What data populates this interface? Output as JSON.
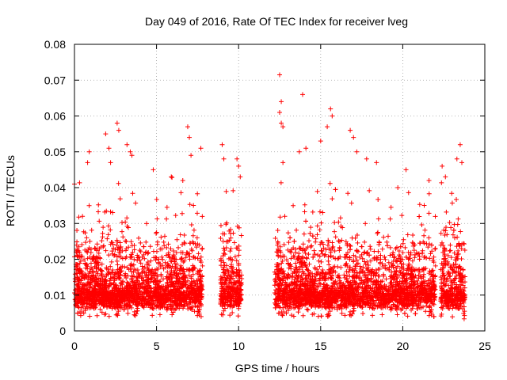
{
  "chart_data": {
    "type": "scatter",
    "title": "Day 049 of 2016, Rate Of TEC Index for receiver lveg",
    "xlabel": "GPS time / hours",
    "ylabel": "ROTI / TECUs",
    "xlim": [
      0,
      25
    ],
    "ylim": [
      0,
      0.08
    ],
    "grid": true,
    "marker": "+",
    "marker_color": "#ff0000",
    "x_ticks": [
      0,
      5,
      10,
      15,
      20,
      25
    ],
    "x_tick_labels": [
      "0",
      "5",
      "10",
      "15",
      "20",
      "25"
    ],
    "y_ticks": [
      0,
      0.01,
      0.02,
      0.03,
      0.04,
      0.05,
      0.06,
      0.07,
      0.08
    ],
    "y_tick_labels": [
      "0",
      "0.01",
      "0.02",
      "0.03",
      "0.04",
      "0.05",
      "0.06",
      "0.07",
      "0.08"
    ],
    "series": [
      {
        "name": "ROTI",
        "segments": [
          {
            "x_start": 0.0,
            "x_end": 7.8,
            "typical_min": 0.004,
            "typical_max": 0.025
          },
          {
            "x_start": 8.9,
            "x_end": 10.2,
            "typical_min": 0.004,
            "typical_max": 0.03
          },
          {
            "x_start": 12.2,
            "x_end": 22.0,
            "typical_min": 0.004,
            "typical_max": 0.025
          },
          {
            "x_start": 22.3,
            "x_end": 23.8,
            "typical_min": 0.003,
            "typical_max": 0.03
          }
        ],
        "notable_points": [
          {
            "x": 0.0,
            "y": 0.041
          },
          {
            "x": 0.8,
            "y": 0.047
          },
          {
            "x": 0.9,
            "y": 0.05
          },
          {
            "x": 1.9,
            "y": 0.055
          },
          {
            "x": 2.1,
            "y": 0.051
          },
          {
            "x": 2.2,
            "y": 0.047
          },
          {
            "x": 2.6,
            "y": 0.058
          },
          {
            "x": 2.7,
            "y": 0.056
          },
          {
            "x": 3.2,
            "y": 0.052
          },
          {
            "x": 3.4,
            "y": 0.05
          },
          {
            "x": 3.5,
            "y": 0.049
          },
          {
            "x": 4.8,
            "y": 0.045
          },
          {
            "x": 5.9,
            "y": 0.043
          },
          {
            "x": 6.6,
            "y": 0.042
          },
          {
            "x": 6.9,
            "y": 0.057
          },
          {
            "x": 7.0,
            "y": 0.054
          },
          {
            "x": 7.1,
            "y": 0.049
          },
          {
            "x": 7.7,
            "y": 0.051
          },
          {
            "x": 9.0,
            "y": 0.052
          },
          {
            "x": 9.1,
            "y": 0.048
          },
          {
            "x": 9.9,
            "y": 0.048
          },
          {
            "x": 10.0,
            "y": 0.046
          },
          {
            "x": 10.1,
            "y": 0.043
          },
          {
            "x": 12.5,
            "y": 0.0715
          },
          {
            "x": 12.6,
            "y": 0.064
          },
          {
            "x": 12.5,
            "y": 0.061
          },
          {
            "x": 12.6,
            "y": 0.058
          },
          {
            "x": 12.7,
            "y": 0.057
          },
          {
            "x": 12.7,
            "y": 0.047
          },
          {
            "x": 13.9,
            "y": 0.066
          },
          {
            "x": 13.7,
            "y": 0.05
          },
          {
            "x": 14.1,
            "y": 0.051
          },
          {
            "x": 15.0,
            "y": 0.053
          },
          {
            "x": 15.4,
            "y": 0.057
          },
          {
            "x": 15.6,
            "y": 0.062
          },
          {
            "x": 15.7,
            "y": 0.06
          },
          {
            "x": 16.8,
            "y": 0.056
          },
          {
            "x": 17.0,
            "y": 0.054
          },
          {
            "x": 17.2,
            "y": 0.05
          },
          {
            "x": 17.8,
            "y": 0.048
          },
          {
            "x": 18.4,
            "y": 0.047
          },
          {
            "x": 19.7,
            "y": 0.04
          },
          {
            "x": 20.2,
            "y": 0.045
          },
          {
            "x": 21.6,
            "y": 0.042
          },
          {
            "x": 22.4,
            "y": 0.046
          },
          {
            "x": 22.6,
            "y": 0.043
          },
          {
            "x": 23.3,
            "y": 0.048
          },
          {
            "x": 23.5,
            "y": 0.052
          },
          {
            "x": 23.6,
            "y": 0.047
          }
        ]
      }
    ]
  }
}
